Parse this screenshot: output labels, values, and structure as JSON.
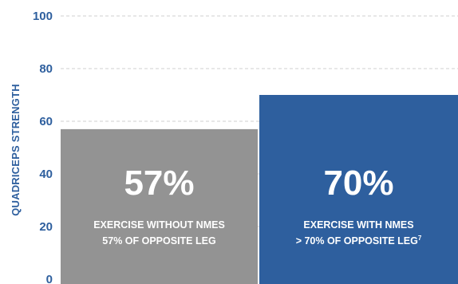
{
  "chart_data": {
    "type": "bar",
    "ylabel": "QUADRICEPS STRENGTH",
    "ylim": [
      0,
      100
    ],
    "yticks": [
      0,
      20,
      40,
      60,
      80,
      100
    ],
    "grid": "horizontal dashed",
    "colors": {
      "axis_text": "#2E5F9E",
      "grid": "#cfcfcf"
    },
    "bars": [
      {
        "value": 57,
        "value_label": "57%",
        "caption_line1": "EXERCISE WITHOUT NMES",
        "caption_line2": "57% OF OPPOSITE LEG",
        "caption_superscript": "",
        "color": "#939393"
      },
      {
        "value": 70,
        "value_label": "70%",
        "caption_line1": "EXERCISE WITH NMES",
        "caption_line2": "> 70% OF OPPOSITE LEG",
        "caption_superscript": "7",
        "color": "#2E5F9E"
      }
    ]
  }
}
